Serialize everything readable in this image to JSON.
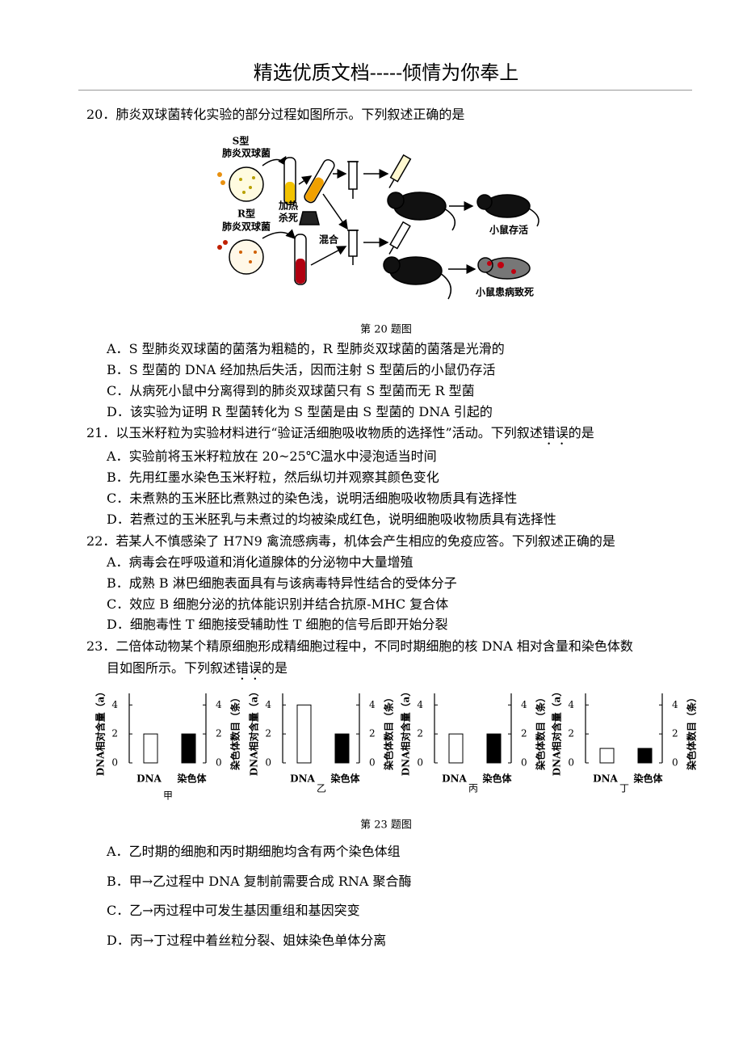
{
  "header": {
    "title": "精选优质文档-----倾情为你奉上"
  },
  "questions": [
    {
      "number": "20．",
      "stem": [
        "肺炎双球菌转化实验的部分过程如图所示。下列叙述正确的是"
      ],
      "figure": {
        "labels": [
          "S型",
          "肺炎双球菌",
          "加热",
          "杀死",
          "R型",
          "肺炎双球菌",
          "混合",
          "小鼠存活",
          "小鼠患病致死"
        ],
        "caption": "第 20 题图"
      },
      "options": [
        {
          "letter": "A．",
          "text": "S 型肺炎双球菌的菌落为粗糙的，R 型肺炎双球菌的菌落是光滑的"
        },
        {
          "letter": "B．",
          "text": "S 型菌的 DNA 经加热后失活，因而注射 S 型菌后的小鼠仍存活"
        },
        {
          "letter": "C．",
          "text": "从病死小鼠中分离得到的肺炎双球菌只有 S 型菌而无 R 型菌"
        },
        {
          "letter": "D．",
          "text": "该实验为证明 R 型菌转化为 S 型菌是由 S 型菌的 DNA 引起的"
        }
      ]
    },
    {
      "number": "21．",
      "stem": [
        "以玉米籽粒为实验材料进行“验证活细胞吸收物质的选择性”活动。下列叙述",
        "错误",
        "的是"
      ],
      "options": [
        {
          "letter": "A．",
          "text": "实验前将玉米籽粒放在 20~25℃温水中浸泡适当时间"
        },
        {
          "letter": "B．",
          "text": "先用红墨水染色玉米籽粒，然后纵切并观察其颜色变化"
        },
        {
          "letter": "C．",
          "text": "未煮熟的玉米胚比煮熟过的染色浅，说明活细胞吸收物质具有选择性"
        },
        {
          "letter": "D．",
          "text": "若煮过的玉米胚乳与未煮过的均被染成红色，说明细胞吸收物质具有选择性"
        }
      ]
    },
    {
      "number": "22．",
      "stem": [
        "若某人不慎感染了 H7N9 禽流感病毒，机体会产生相应的免疫应答。下列叙述正确的是"
      ],
      "options": [
        {
          "letter": "A．",
          "text": "病毒会在呼吸道和消化道腺体的分泌物中大量增殖"
        },
        {
          "letter": "B．",
          "text": "成熟 B 淋巴细胞表面具有与该病毒特异性结合的受体分子"
        },
        {
          "letter": "C．",
          "text": "效应 B 细胞分泌的抗体能识别并结合抗原-MHC 复合体"
        },
        {
          "letter": "D．",
          "text": "细胞毒性 T 细胞接受辅助性 T 细胞的信号后即开始分裂"
        }
      ]
    },
    {
      "number": "23．",
      "stem": [
        "二倍体动物某个精原细胞形成精细胞过程中，不同时期细胞的核 DNA 相对含量和染色体数",
        "目如图所示。下列叙述",
        "错误",
        "的是"
      ],
      "figure": {
        "type": "bar",
        "categories": [
          "甲",
          "乙",
          "丙",
          "丁"
        ],
        "y_axis_label": "DNA相对含量（a）",
        "y2_axis_label": "染色体数目（条）",
        "ylim": [
          0,
          4.8
        ],
        "yticks": [
          0,
          2,
          4
        ],
        "y2lim": [
          0,
          4.8
        ],
        "y2ticks": [
          0,
          2,
          4
        ],
        "series": [
          {
            "name": "DNA",
            "color": "#ffffff",
            "values": [
              2,
              4,
              2,
              1
            ]
          },
          {
            "name": "染色体",
            "color": "#000000",
            "values": [
              2,
              2,
              2,
              1
            ],
            "axis": "y2"
          }
        ],
        "caption": "第 23 题图"
      },
      "options": [
        {
          "letter": "A．",
          "text": "乙时期的细胞和丙时期细胞均含有两个染色体组"
        },
        {
          "letter": "B．",
          "text": "甲→乙过程中 DNA 复制前需要合成 RNA 聚合酶"
        },
        {
          "letter": "C．",
          "text": "乙→丙过程中可发生基因重组和基因突变"
        },
        {
          "letter": "D．",
          "text": "丙→丁过程中着丝粒分裂、姐妹染色单体分离"
        }
      ]
    }
  ]
}
